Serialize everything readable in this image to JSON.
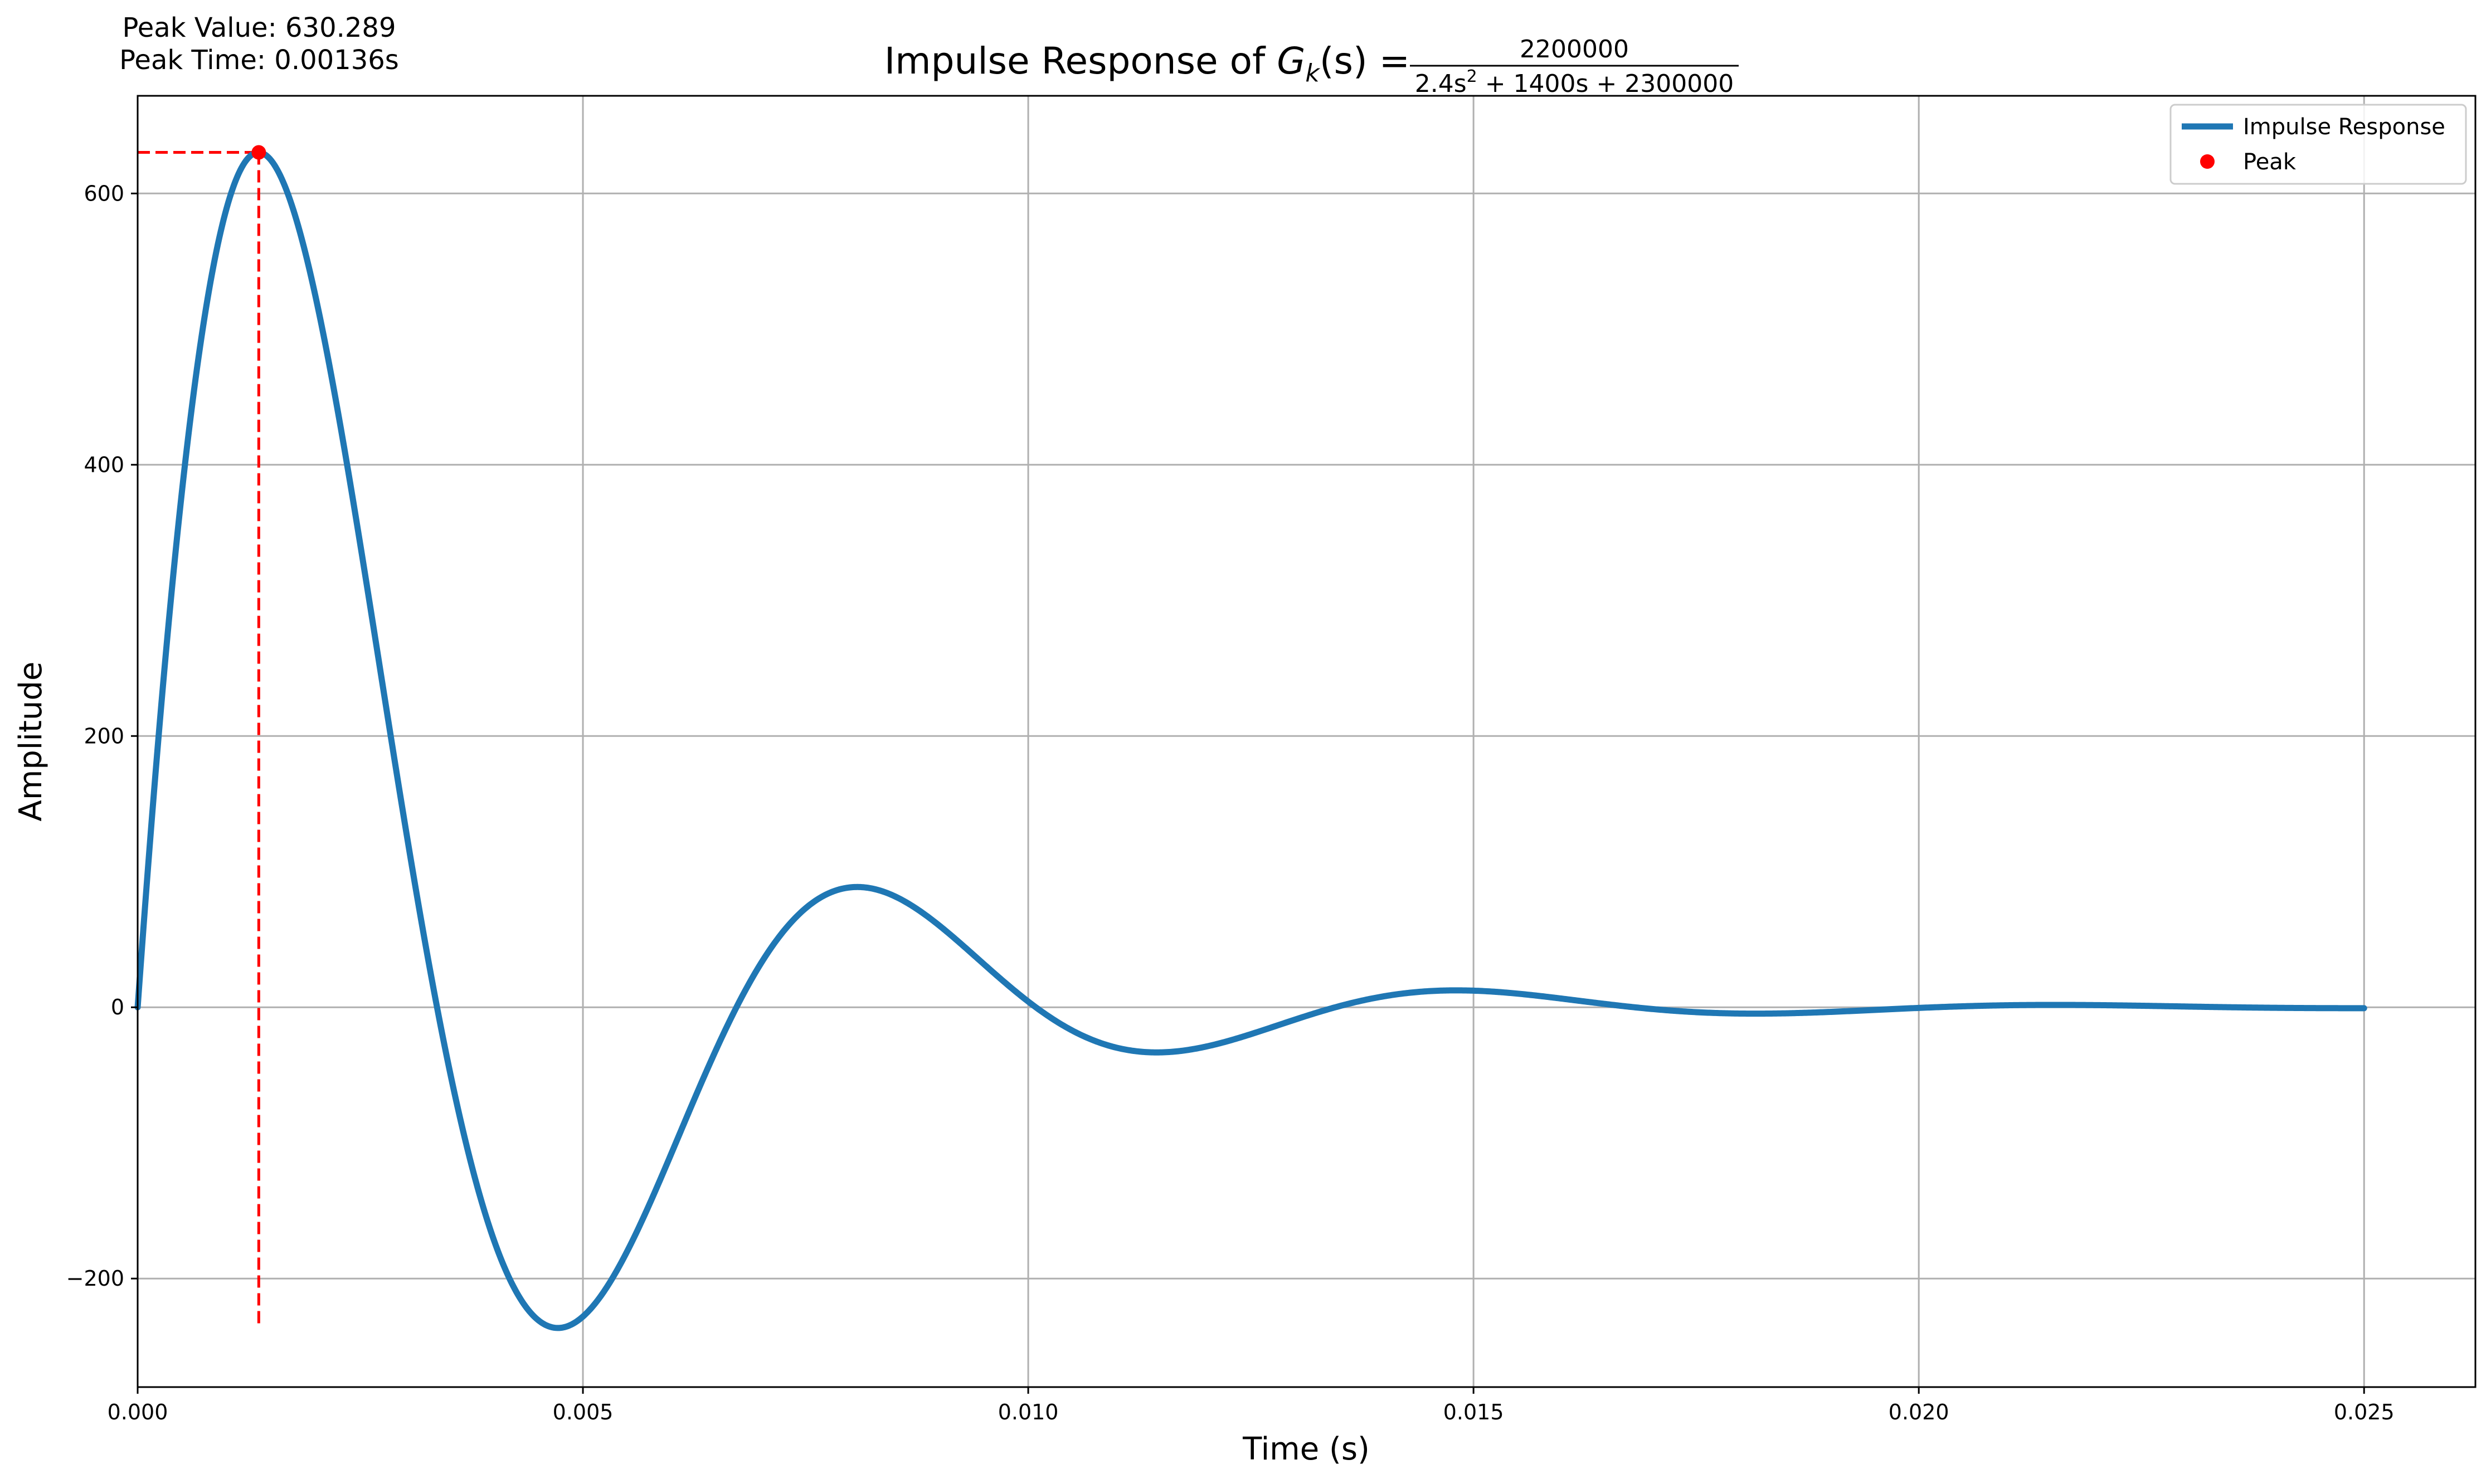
{
  "chart_data": {
    "type": "line",
    "title": {
      "prefix": "Impulse Response of ",
      "func": "G",
      "sub": "k",
      "arg": "(s) = ",
      "numerator": "2200000",
      "den_part1": "2.4s",
      "den_sup": "2",
      "den_part2": " + 1400s + 2300000"
    },
    "xlabel": "Time (s)",
    "ylabel": "Amplitude",
    "xlim": [
      0,
      0.02625
    ],
    "ylim": [
      -280,
      672
    ],
    "x_ticks": [
      0,
      0.005,
      0.01,
      0.015,
      0.02,
      0.025
    ],
    "x_tick_labels": [
      "0.000",
      "0.005",
      "0.010",
      "0.015",
      "0.020",
      "0.025"
    ],
    "y_ticks": [
      -200,
      0,
      200,
      400,
      600
    ],
    "y_tick_labels": [
      "−200",
      "0",
      "200",
      "400",
      "600"
    ],
    "grid": true,
    "legend_position": "top-right",
    "system": {
      "num": 2200000,
      "den": [
        2.4,
        1400,
        2300000
      ],
      "t_end": 0.025
    },
    "series": [
      {
        "name": "Impulse Response",
        "kind": "line",
        "color": "#1f77b4"
      },
      {
        "name": "Peak",
        "kind": "marker",
        "color": "#ff0000",
        "x": 0.00136,
        "y": 630.289
      }
    ],
    "peak_guides": {
      "color": "#ff0000",
      "vertical_bottom": -236
    },
    "annotations": {
      "peak_value": "Peak Value: 630.289",
      "peak_time": "Peak Time: 0.00136s"
    }
  }
}
